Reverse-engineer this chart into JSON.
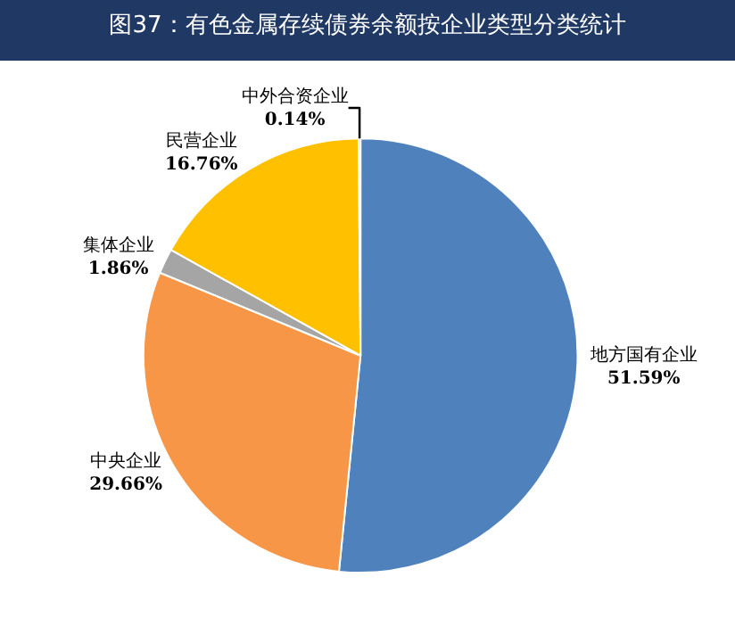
{
  "chart_data": {
    "type": "pie",
    "title": "图37：有色金属存续债券余额按企业类型分类统计",
    "categories": [
      "地方国有企业",
      "中央企业",
      "集体企业",
      "民营企业",
      "中外合资企业"
    ],
    "values": [
      51.59,
      29.66,
      1.86,
      16.76,
      0.14
    ],
    "colors": [
      "#4f81bd",
      "#f79646",
      "#a5a5a5",
      "#ffc000",
      "#254061"
    ],
    "value_labels": [
      "51.59%",
      "29.66%",
      "1.86%",
      "16.76%",
      "0.14%"
    ],
    "legend": false
  }
}
